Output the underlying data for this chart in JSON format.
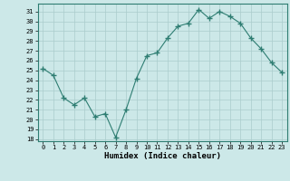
{
  "x": [
    0,
    1,
    2,
    3,
    4,
    5,
    6,
    7,
    8,
    9,
    10,
    11,
    12,
    13,
    14,
    15,
    16,
    17,
    18,
    19,
    20,
    21,
    22,
    23
  ],
  "y": [
    25.2,
    24.5,
    22.2,
    21.5,
    22.2,
    20.3,
    20.6,
    18.2,
    21.0,
    24.2,
    26.5,
    26.8,
    28.3,
    29.5,
    29.8,
    31.2,
    30.3,
    31.0,
    30.5,
    29.8,
    28.3,
    27.2,
    25.8,
    24.8
  ],
  "xlabel": "Humidex (Indice chaleur)",
  "ylim": [
    17.8,
    31.8
  ],
  "xlim": [
    -0.5,
    23.5
  ],
  "yticks": [
    18,
    19,
    20,
    21,
    22,
    23,
    24,
    25,
    26,
    27,
    28,
    29,
    30,
    31
  ],
  "xticks": [
    0,
    1,
    2,
    3,
    4,
    5,
    6,
    7,
    8,
    9,
    10,
    11,
    12,
    13,
    14,
    15,
    16,
    17,
    18,
    19,
    20,
    21,
    22,
    23
  ],
  "line_color": "#2e7d72",
  "marker_color": "#2e7d72",
  "bg_color": "#cce8e8",
  "grid_color": "#aacccc",
  "spine_color": "#2e7d72",
  "tick_label_fontsize": 5.0,
  "xlabel_fontsize": 6.5
}
